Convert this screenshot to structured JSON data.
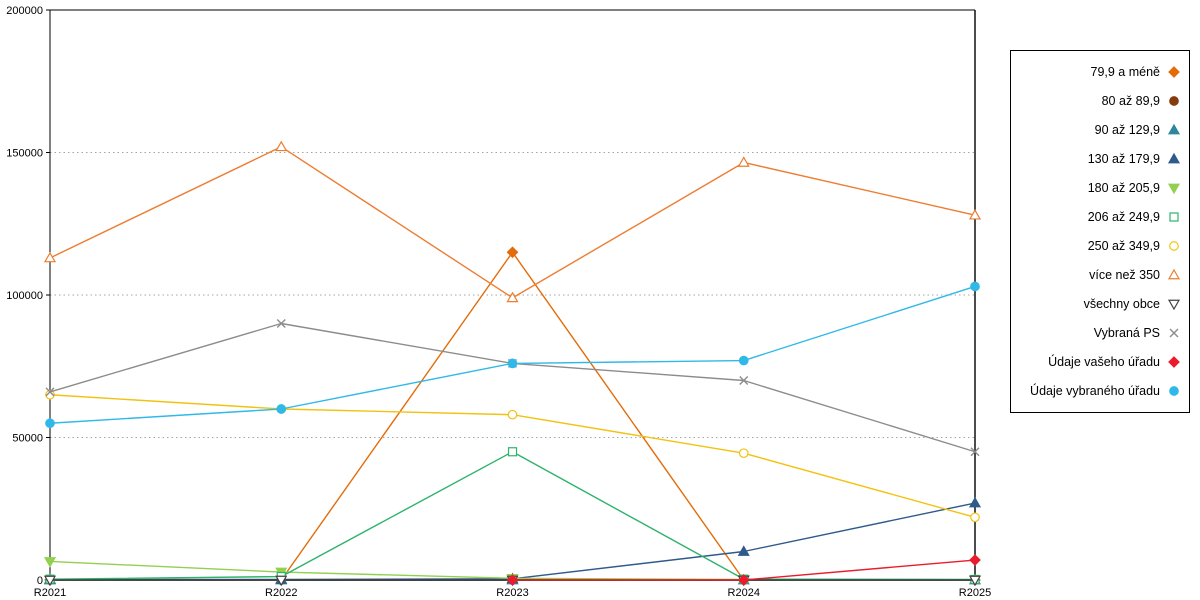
{
  "chart_data": {
    "type": "line",
    "title": "",
    "xlabel": "",
    "ylabel": "",
    "categories": [
      "R2021",
      "R2022",
      "R2023",
      "R2024",
      "R2025"
    ],
    "ylim": [
      0,
      200000
    ],
    "yticks": [
      0,
      50000,
      100000,
      150000,
      200000
    ],
    "grid": true,
    "legend_position": "right",
    "series": [
      {
        "name": "79,9 a méně",
        "color": "#e36c09",
        "marker": "diamond",
        "filled": true,
        "values": [
          0,
          0,
          115000,
          0,
          0
        ]
      },
      {
        "name": "80 až 89,9",
        "color": "#843c0c",
        "marker": "circle",
        "filled": true,
        "values": [
          0,
          0,
          0,
          0,
          0
        ]
      },
      {
        "name": "90 až 129,9",
        "color": "#2e869c",
        "marker": "triangle-up",
        "filled": true,
        "values": [
          0,
          0,
          0,
          0,
          0
        ]
      },
      {
        "name": "130 až 179,9",
        "color": "#2f5a8b",
        "marker": "triangle-up",
        "filled": true,
        "values": [
          200,
          200,
          400,
          10000,
          27000
        ]
      },
      {
        "name": "180 až 205,9",
        "color": "#92d050",
        "marker": "triangle-down",
        "filled": true,
        "values": [
          6500,
          2800,
          600,
          200,
          100
        ]
      },
      {
        "name": "206 až 249,9",
        "color": "#2db36b",
        "marker": "square",
        "filled": false,
        "values": [
          300,
          1200,
          45000,
          300,
          200
        ]
      },
      {
        "name": "250 až 349,9",
        "color": "#f2c211",
        "marker": "circle",
        "filled": false,
        "values": [
          65000,
          60000,
          58000,
          44500,
          22000
        ]
      },
      {
        "name": "více než 350",
        "color": "#ed7d31",
        "marker": "triangle-up",
        "filled": false,
        "values": [
          113000,
          152000,
          99000,
          146500,
          128000
        ]
      },
      {
        "name": "všechny obce",
        "color": "#404040",
        "marker": "triangle-down",
        "filled": false,
        "values": [
          0,
          0,
          0,
          0,
          0
        ]
      },
      {
        "name": "Vybraná PS",
        "color": "#8c8c8c",
        "marker": "x",
        "filled": false,
        "values": [
          66000,
          90000,
          76000,
          70000,
          45000
        ]
      },
      {
        "name": "Údaje vašeho úřadu",
        "color": "#ea1c2c",
        "marker": "diamond",
        "filled": true,
        "values": [
          null,
          null,
          0,
          0,
          7000
        ]
      },
      {
        "name": "Údaje vybraného úřadu",
        "color": "#2fb9e8",
        "marker": "circle",
        "filled": true,
        "values": [
          55000,
          60000,
          76000,
          77000,
          103000
        ]
      }
    ]
  }
}
